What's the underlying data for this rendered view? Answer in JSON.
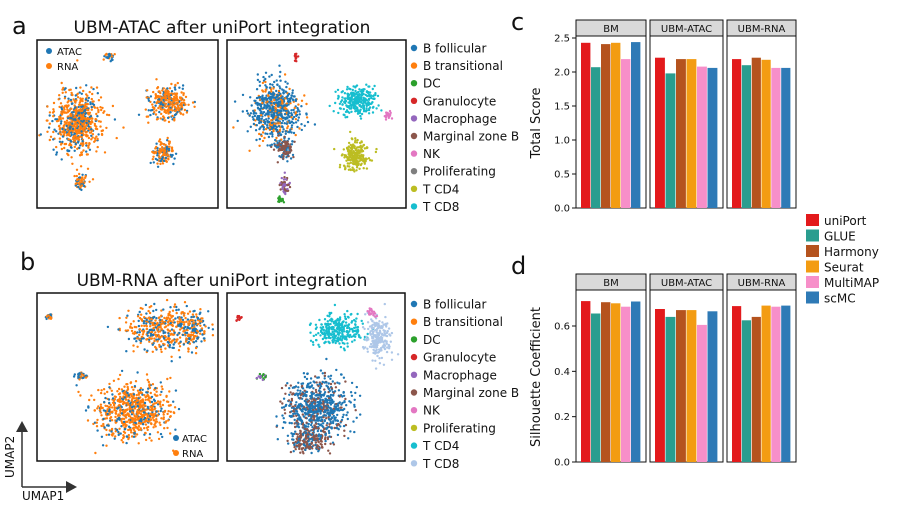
{
  "panels": {
    "a": {
      "letter": "a",
      "title": "UBM-ATAC after uniPort integration",
      "modality_legend": [
        {
          "label": "ATAC",
          "color": "#1f77b4"
        },
        {
          "label": "RNA",
          "color": "#ff7f0e"
        }
      ],
      "celltype_legend": [
        {
          "label": "B follicular",
          "color": "#1f77b4"
        },
        {
          "label": "B transitional",
          "color": "#ff7f0e"
        },
        {
          "label": "DC",
          "color": "#2ca02c"
        },
        {
          "label": "Granulocyte",
          "color": "#d62728"
        },
        {
          "label": "Macrophage",
          "color": "#9467bd"
        },
        {
          "label": "Marginal zone B",
          "color": "#8c564b"
        },
        {
          "label": "NK",
          "color": "#e377c2"
        },
        {
          "label": "Proliferating",
          "color": "#7f7f7f"
        },
        {
          "label": "T CD4",
          "color": "#bcbd22"
        },
        {
          "label": "T CD8",
          "color": "#17becf"
        }
      ]
    },
    "b": {
      "letter": "b",
      "title": "UBM-RNA after uniPort integration",
      "modality_legend": [
        {
          "label": "ATAC",
          "color": "#1f77b4"
        },
        {
          "label": "RNA",
          "color": "#ff7f0e"
        }
      ],
      "celltype_legend": [
        {
          "label": "B follicular",
          "color": "#1f77b4"
        },
        {
          "label": "B transitional",
          "color": "#ff7f0e"
        },
        {
          "label": "DC",
          "color": "#2ca02c"
        },
        {
          "label": "Granulocyte",
          "color": "#d62728"
        },
        {
          "label": "Macrophage",
          "color": "#9467bd"
        },
        {
          "label": "Marginal zone B",
          "color": "#8c564b"
        },
        {
          "label": "NK",
          "color": "#e377c2"
        },
        {
          "label": "Proliferating",
          "color": "#bcbd22"
        },
        {
          "label": "T CD4",
          "color": "#17becf"
        },
        {
          "label": "T CD8",
          "color": "#aec7e8"
        }
      ],
      "axis_labels": {
        "x": "UMAP1",
        "y": "UMAP2"
      }
    },
    "c": {
      "letter": "c"
    },
    "d": {
      "letter": "d"
    }
  },
  "methods_legend": [
    {
      "label": "uniPort",
      "color": "#e31a1c"
    },
    {
      "label": "GLUE",
      "color": "#2a9d8f"
    },
    {
      "label": "Harmony",
      "color": "#b5531e"
    },
    {
      "label": "Seurat",
      "color": "#f39c12"
    },
    {
      "label": "MultiMAP",
      "color": "#f78fc9"
    },
    {
      "label": "scMC",
      "color": "#2e7ab6"
    }
  ],
  "chart_data": [
    {
      "type": "bar",
      "panel": "c",
      "ylabel": "Total Score",
      "ylim": [
        0,
        2.5
      ],
      "yticks": [
        "0.0",
        "0.5",
        "1.0",
        "1.5",
        "2.0",
        "2.5"
      ],
      "facets": [
        "BM",
        "UBM-ATAC",
        "UBM-RNA"
      ],
      "series_names": [
        "uniPort",
        "GLUE",
        "Harmony",
        "Seurat",
        "MultiMAP",
        "scMC"
      ],
      "values": [
        [
          2.43,
          2.07,
          2.41,
          2.43,
          2.19,
          2.44
        ],
        [
          2.21,
          1.98,
          2.19,
          2.19,
          2.08,
          2.06
        ],
        [
          2.19,
          2.1,
          2.21,
          2.18,
          2.06,
          2.06
        ]
      ]
    },
    {
      "type": "bar",
      "panel": "d",
      "ylabel": "Silhouette Coefficient",
      "ylim": [
        0,
        0.75
      ],
      "yticks": [
        "0.0",
        "0.2",
        "0.4",
        "0.6"
      ],
      "facets": [
        "BM",
        "UBM-ATAC",
        "UBM-RNA"
      ],
      "series_names": [
        "uniPort",
        "GLUE",
        "Harmony",
        "Seurat",
        "MultiMAP",
        "scMC"
      ],
      "values": [
        [
          0.71,
          0.655,
          0.705,
          0.7,
          0.685,
          0.708
        ],
        [
          0.675,
          0.64,
          0.67,
          0.67,
          0.605,
          0.665
        ],
        [
          0.688,
          0.625,
          0.64,
          0.69,
          0.685,
          0.69
        ]
      ]
    }
  ]
}
